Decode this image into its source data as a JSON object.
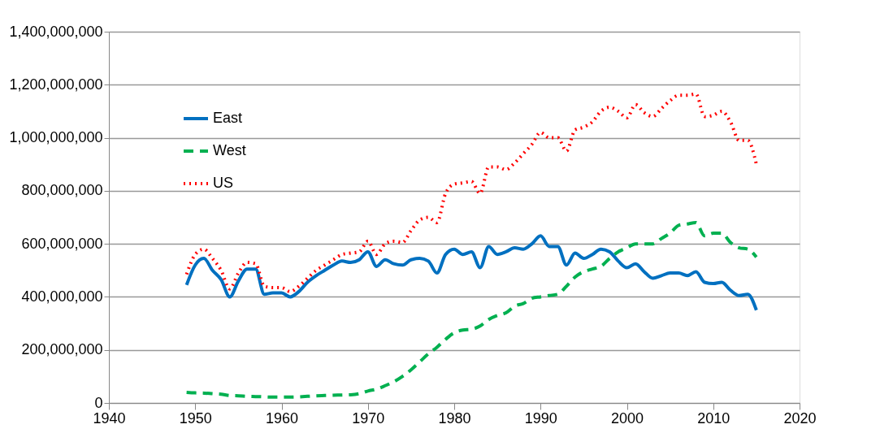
{
  "chart_data": {
    "type": "line",
    "x": [
      1949,
      1950,
      1951,
      1952,
      1953,
      1954,
      1955,
      1956,
      1957,
      1958,
      1959,
      1960,
      1961,
      1962,
      1963,
      1964,
      1965,
      1966,
      1967,
      1968,
      1969,
      1970,
      1971,
      1972,
      1973,
      1974,
      1975,
      1976,
      1977,
      1978,
      1979,
      1980,
      1981,
      1982,
      1983,
      1984,
      1985,
      1986,
      1987,
      1988,
      1989,
      1990,
      1991,
      1992,
      1993,
      1994,
      1995,
      1996,
      1997,
      1998,
      1999,
      2000,
      2001,
      2002,
      2003,
      2004,
      2005,
      2006,
      2007,
      2008,
      2009,
      2010,
      2011,
      2012,
      2013,
      2014,
      2015
    ],
    "series": [
      {
        "name": "East",
        "color": "#0070c0",
        "line_style": "solid",
        "values": [
          445000000,
          520000000,
          545000000,
          500000000,
          465000000,
          400000000,
          460000000,
          505000000,
          505000000,
          410000000,
          415000000,
          415000000,
          400000000,
          420000000,
          455000000,
          480000000,
          500000000,
          520000000,
          535000000,
          530000000,
          540000000,
          570000000,
          515000000,
          540000000,
          525000000,
          520000000,
          540000000,
          545000000,
          535000000,
          490000000,
          560000000,
          580000000,
          560000000,
          570000000,
          510000000,
          590000000,
          560000000,
          570000000,
          585000000,
          580000000,
          600000000,
          630000000,
          590000000,
          590000000,
          520000000,
          565000000,
          545000000,
          560000000,
          580000000,
          570000000,
          535000000,
          510000000,
          525000000,
          495000000,
          470000000,
          480000000,
          490000000,
          490000000,
          480000000,
          495000000,
          455000000,
          450000000,
          455000000,
          425000000,
          405000000,
          410000000,
          350000000
        ]
      },
      {
        "name": "West",
        "color": "#00b050",
        "line_style": "dashed",
        "values": [
          40000000,
          38000000,
          37000000,
          35000000,
          33000000,
          28000000,
          27000000,
          25000000,
          24000000,
          23000000,
          22000000,
          22000000,
          22000000,
          23000000,
          25000000,
          27000000,
          28000000,
          29000000,
          30000000,
          31000000,
          35000000,
          45000000,
          52000000,
          65000000,
          80000000,
          100000000,
          125000000,
          155000000,
          185000000,
          210000000,
          240000000,
          265000000,
          275000000,
          278000000,
          290000000,
          315000000,
          330000000,
          340000000,
          365000000,
          375000000,
          395000000,
          400000000,
          405000000,
          410000000,
          440000000,
          475000000,
          495000000,
          505000000,
          515000000,
          545000000,
          570000000,
          585000000,
          600000000,
          600000000,
          600000000,
          620000000,
          640000000,
          670000000,
          675000000,
          680000000,
          630000000,
          640000000,
          640000000,
          605000000,
          585000000,
          580000000,
          550000000
        ]
      },
      {
        "name": "US",
        "color": "#ff0000",
        "line_style": "dotted",
        "values": [
          485000000,
          560000000,
          580000000,
          545000000,
          500000000,
          430000000,
          490000000,
          530000000,
          525000000,
          440000000,
          435000000,
          435000000,
          420000000,
          440000000,
          470000000,
          500000000,
          520000000,
          540000000,
          560000000,
          565000000,
          570000000,
          610000000,
          560000000,
          600000000,
          610000000,
          605000000,
          650000000,
          690000000,
          700000000,
          680000000,
          790000000,
          825000000,
          830000000,
          835000000,
          790000000,
          890000000,
          890000000,
          880000000,
          905000000,
          940000000,
          975000000,
          1020000000,
          1000000000,
          1000000000,
          950000000,
          1030000000,
          1040000000,
          1060000000,
          1100000000,
          1115000000,
          1100000000,
          1075000000,
          1125000000,
          1095000000,
          1080000000,
          1110000000,
          1140000000,
          1160000000,
          1160000000,
          1165000000,
          1080000000,
          1085000000,
          1100000000,
          1060000000,
          990000000,
          990000000,
          900000000
        ]
      }
    ],
    "xlim": [
      1940,
      2020
    ],
    "xticks": [
      1940,
      1950,
      1960,
      1970,
      1980,
      1990,
      2000,
      2010,
      2020
    ],
    "ylim": [
      0,
      1400000000
    ],
    "yticks": [
      0,
      {
        "value": 200000000,
        "label": "200,000,000"
      },
      {
        "value": 400000000,
        "label": "400,000,000"
      },
      {
        "value": 600000000,
        "label": "600,000,000"
      },
      {
        "value": 800000000,
        "label": "800,000,000"
      },
      {
        "value": 1000000000,
        "label": "1,000,000,000"
      },
      {
        "value": 1200000000,
        "label": "1,200,000,000"
      },
      {
        "value": 1400000000,
        "label": "1,400,000,000"
      }
    ],
    "grid": "y",
    "legend": "top left",
    "marker": "none"
  }
}
